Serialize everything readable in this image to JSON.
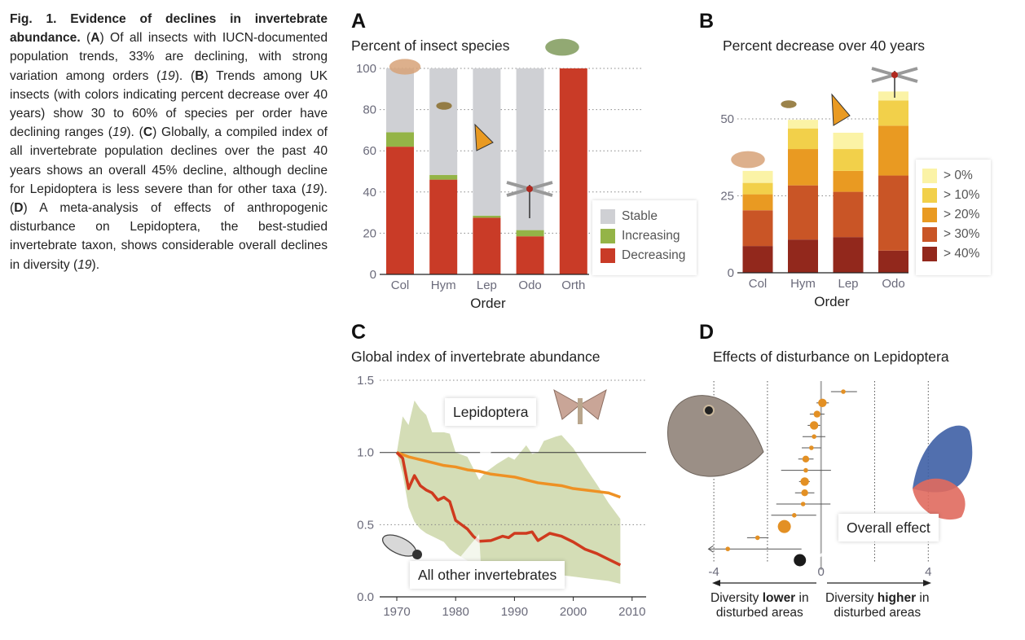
{
  "caption": {
    "fig_label": "Fig. 1. Evidence of declines in invertebrate abundance.",
    "parts": [
      {
        "letter": "A",
        "text": "Of all insects with IUCN-documented population trends, 33% are declining, with strong variation among orders",
        "ref": "19"
      },
      {
        "letter": "B",
        "text": "Trends among UK insects (with colors indicating percent decrease over 40 years) show 30 to 60% of species per order have declining ranges",
        "ref": "19"
      },
      {
        "letter": "C",
        "text": "Globally, a compiled index of all invertebrate population declines over the past 40 years shows an overall 45% decline, although decline for Lepidoptera is less severe than for other taxa",
        "ref": "19"
      },
      {
        "letter": "D",
        "text": "A meta-analysis of effects of anthropogenic disturbance on Lepidoptera, the best-studied invertebrate taxon, shows considerable overall declines in diversity",
        "ref": "19"
      }
    ]
  },
  "chart_data": [
    {
      "panel": "A",
      "type": "bar",
      "stacked": true,
      "title": "Percent of insect species",
      "xlabel": "Order",
      "ylabel": "",
      "categories": [
        "Col",
        "Hym",
        "Lep",
        "Odo",
        "Orth"
      ],
      "series": [
        {
          "name": "Decreasing",
          "color": "#c93b27",
          "values": [
            62,
            46,
            27.5,
            18.5,
            100
          ]
        },
        {
          "name": "Increasing",
          "color": "#94b447",
          "values": [
            7,
            2.3,
            1,
            3,
            0
          ]
        },
        {
          "name": "Stable",
          "color": "#cfd0d4",
          "values": [
            31,
            51.7,
            71.5,
            78.5,
            0
          ]
        }
      ],
      "legend_order": [
        "Stable",
        "Increasing",
        "Decreasing"
      ],
      "legend_position": "bottom-right",
      "ylim": [
        0,
        100
      ],
      "yticks": [
        0,
        20,
        40,
        60,
        80,
        100
      ],
      "grid": "dotted horizontal",
      "decorations": [
        "beetle-illustration",
        "ant-illustration",
        "monarch-butterfly-illustration",
        "dragonfly-illustration",
        "grasshopper-illustration"
      ]
    },
    {
      "panel": "B",
      "type": "bar",
      "stacked": true,
      "title": "Percent decrease over 40 years",
      "xlabel": "Order",
      "ylabel": "",
      "categories": [
        "Col",
        "Hym",
        "Lep",
        "Odo"
      ],
      "series": [
        {
          "name": "> 40%",
          "color": "#92281c",
          "values": [
            8.7,
            10.8,
            11.6,
            7.2
          ]
        },
        {
          "name": "> 30%",
          "color": "#c95526",
          "values": [
            11.6,
            17.6,
            14.7,
            24.4
          ]
        },
        {
          "name": "> 20%",
          "color": "#e99a22",
          "values": [
            5.2,
            11.8,
            6.8,
            16.2
          ]
        },
        {
          "name": "> 10%",
          "color": "#f2d04a",
          "values": [
            3.7,
            6.7,
            7.1,
            8.2
          ]
        },
        {
          "name": "> 0%",
          "color": "#fbf3a6",
          "values": [
            3.9,
            2.8,
            5.3,
            2.9
          ]
        }
      ],
      "legend_order": [
        "> 0%",
        "> 10%",
        "> 20%",
        "> 30%",
        "> 40%"
      ],
      "legend_position": "right",
      "ylim": [
        0,
        60
      ],
      "yticks": [
        0,
        25,
        50
      ],
      "grid": "dotted horizontal",
      "decorations": [
        "beetle-illustration",
        "ant-illustration",
        "monarch-butterfly-illustration",
        "dragonfly-illustration"
      ]
    },
    {
      "panel": "C",
      "type": "line",
      "title": "Global index of invertebrate abundance",
      "xlabel": "",
      "ylabel": "",
      "xlim": [
        1967,
        2012
      ],
      "ylim": [
        0,
        1.5
      ],
      "xticks": [
        1970,
        1980,
        1990,
        2000,
        2010
      ],
      "yticks": [
        "0.0",
        "0.5",
        "1.0",
        "1.5"
      ],
      "reference_line": 1.0,
      "series": [
        {
          "name": "Lepidoptera",
          "color": "#ee9124",
          "x": [
            1970,
            1972,
            1974,
            1976,
            1978,
            1980,
            1982,
            1984,
            1986,
            1988,
            1990,
            1992,
            1994,
            1996,
            1998,
            2000,
            2002,
            2004,
            2006,
            2008
          ],
          "y": [
            1.0,
            0.97,
            0.95,
            0.93,
            0.91,
            0.9,
            0.88,
            0.87,
            0.85,
            0.84,
            0.83,
            0.81,
            0.79,
            0.78,
            0.77,
            0.75,
            0.74,
            0.73,
            0.72,
            0.69
          ]
        },
        {
          "name": "All other invertebrates",
          "color": "#cf3a1e",
          "x": [
            1970,
            1971,
            1972,
            1973,
            1974,
            1975,
            1976,
            1977,
            1978,
            1979,
            1980,
            1981,
            1982,
            1983,
            1984,
            1986,
            1988,
            1989,
            1990,
            1992,
            1993,
            1994,
            1996,
            1998,
            2000,
            2002,
            2004,
            2006,
            2008
          ],
          "y": [
            1.0,
            0.96,
            0.75,
            0.84,
            0.77,
            0.74,
            0.72,
            0.67,
            0.69,
            0.66,
            0.53,
            0.5,
            0.47,
            0.42,
            0.385,
            0.39,
            0.42,
            0.41,
            0.44,
            0.44,
            0.45,
            0.39,
            0.44,
            0.42,
            0.38,
            0.33,
            0.3,
            0.26,
            0.22
          ]
        }
      ],
      "band": {
        "name": "uncertainty-band",
        "color": "#d4ddb6",
        "x": [
          1970,
          1971,
          1972,
          1973,
          1974,
          1975,
          1976,
          1978,
          1979,
          1980,
          1982,
          1984,
          1985,
          1987,
          1989,
          1990,
          1991,
          1992,
          1993,
          1994,
          1995,
          1997,
          1998,
          2000,
          2002,
          2004,
          2006,
          2008
        ],
        "upper": [
          1.0,
          1.25,
          1.19,
          1.36,
          1.3,
          1.26,
          1.14,
          1.14,
          1.13,
          1.0,
          0.97,
          0.81,
          0.86,
          0.92,
          0.97,
          0.95,
          1.0,
          1.05,
          0.99,
          1.0,
          1.08,
          1.11,
          1.12,
          1.03,
          0.9,
          0.78,
          0.65,
          0.54
        ],
        "lower": [
          1.0,
          0.85,
          0.62,
          0.52,
          0.47,
          0.44,
          0.42,
          0.38,
          0.33,
          0.3,
          0.25,
          0.22,
          0.21,
          0.2,
          0.19,
          0.18,
          0.18,
          0.17,
          0.17,
          0.17,
          0.16,
          0.15,
          0.15,
          0.14,
          0.13,
          0.12,
          0.11,
          0.09
        ]
      },
      "annotations": [
        "Lepidoptera",
        "All other invertebrates"
      ],
      "decorations": [
        "moth-illustration",
        "beetle-illustration"
      ]
    },
    {
      "panel": "D",
      "type": "scatter",
      "subtype": "forest-plot",
      "title": "Effects of disturbance on Lepidoptera",
      "xlim": [
        -4.2,
        4.2
      ],
      "xticks": [
        "-4",
        "0",
        "4"
      ],
      "reference_lines": [
        -4,
        -2,
        2,
        4
      ],
      "zero_line": 0,
      "point_color": "#e39024",
      "studies": [
        {
          "effect": 0.83,
          "ci": [
            0.37,
            1.34
          ],
          "weight": "small"
        },
        {
          "effect": 0.05,
          "ci": [
            -0.17,
            0.29
          ],
          "weight": "large"
        },
        {
          "effect": -0.15,
          "ci": [
            -0.42,
            0.13
          ],
          "weight": "medium"
        },
        {
          "effect": -0.26,
          "ci": [
            -0.5,
            -0.03
          ],
          "weight": "large"
        },
        {
          "effect": -0.26,
          "ci": [
            -0.69,
            0.16
          ],
          "weight": "small"
        },
        {
          "effect": -0.36,
          "ci": [
            -0.72,
            0.0
          ],
          "weight": "small"
        },
        {
          "effect": -0.57,
          "ci": [
            -0.85,
            -0.28
          ],
          "weight": "medium"
        },
        {
          "effect": -0.57,
          "ci": [
            -1.49,
            0.37
          ],
          "weight": "small"
        },
        {
          "effect": -0.61,
          "ci": [
            -0.82,
            -0.42
          ],
          "weight": "large"
        },
        {
          "effect": -0.61,
          "ci": [
            -0.97,
            -0.25
          ],
          "weight": "medium"
        },
        {
          "effect": -0.67,
          "ci": [
            -1.67,
            0.35
          ],
          "weight": "small"
        },
        {
          "effect": -1.0,
          "ci": [
            -1.86,
            -0.18
          ],
          "weight": "small"
        },
        {
          "effect": -1.37,
          "ci": null,
          "weight": "xlarge"
        },
        {
          "effect": -2.37,
          "ci": [
            -2.76,
            -1.96
          ],
          "weight": "small"
        },
        {
          "effect": -3.48,
          "ci": [
            -4.2,
            -0.73
          ],
          "weight": "small",
          "ci_truncated_left": true
        }
      ],
      "overall": {
        "label": "Overall effect",
        "effect": -0.79,
        "color": "#1a1a1a"
      },
      "arrow_labels": {
        "left": {
          "prefix": "Diversity ",
          "bold": "lower",
          "suffix": " in",
          "line2": "disturbed areas"
        },
        "right": {
          "prefix": "Diversity ",
          "bold": "higher",
          "suffix": " in",
          "line2": "disturbed areas"
        }
      },
      "decorations": [
        "brown-butterfly-illustration",
        "colorful-butterfly-illustration"
      ]
    }
  ]
}
